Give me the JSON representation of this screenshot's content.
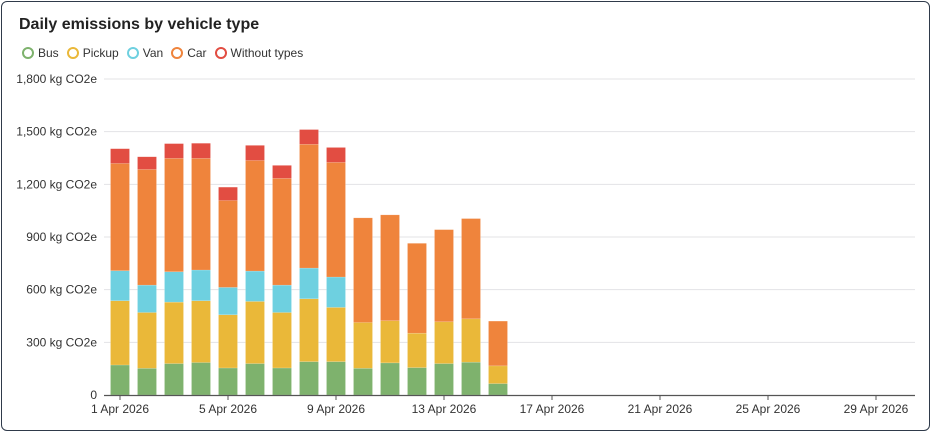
{
  "chart_data": {
    "type": "bar",
    "stacked": true,
    "title": "Daily emissions by vehicle type",
    "xlabel": "",
    "ylabel": "",
    "ylim": [
      0,
      1800
    ],
    "y_ticks": [
      0,
      300,
      600,
      900,
      1200,
      1500,
      1800
    ],
    "y_tick_labels": [
      "0",
      "300 kg CO2e",
      "600 kg CO2e",
      "900 kg CO2e",
      "1,200 kg CO2e",
      "1,500 kg CO2e",
      "1,800 kg CO2e"
    ],
    "x_days": [
      1,
      2,
      3,
      4,
      5,
      6,
      7,
      8,
      9,
      10,
      11,
      12,
      13,
      14,
      15
    ],
    "x_range_days": [
      1,
      30
    ],
    "x_tick_days": [
      1,
      5,
      9,
      13,
      17,
      21,
      25,
      29
    ],
    "x_tick_labels": [
      "1 Apr 2026",
      "5 Apr 2026",
      "9 Apr 2026",
      "13 Apr 2026",
      "17 Apr 2026",
      "21 Apr 2026",
      "25 Apr 2026",
      "29 Apr 2026"
    ],
    "grid": true,
    "legend_position": "top-left",
    "series": [
      {
        "name": "Bus",
        "color": "#7eb26d",
        "values": [
          171,
          152,
          179,
          185,
          154,
          179,
          154,
          190,
          190,
          152,
          183,
          156,
          179,
          187,
          65
        ]
      },
      {
        "name": "Pickup",
        "color": "#eab839",
        "values": [
          366,
          318,
          350,
          352,
          303,
          354,
          316,
          358,
          309,
          261,
          240,
          196,
          238,
          247,
          101
        ]
      },
      {
        "name": "Van",
        "color": "#6ed0e0",
        "values": [
          171,
          156,
          173,
          175,
          156,
          173,
          156,
          175,
          173,
          0,
          0,
          0,
          0,
          0,
          0
        ]
      },
      {
        "name": "Car",
        "color": "#ef843c",
        "values": [
          611,
          659,
          646,
          636,
          495,
          630,
          608,
          705,
          653,
          596,
          603,
          512,
          525,
          571,
          255
        ]
      },
      {
        "name": "Without types",
        "color": "#e24d42",
        "values": [
          84,
          72,
          84,
          86,
          76,
          86,
          74,
          84,
          85,
          0,
          0,
          0,
          0,
          0,
          0
        ]
      }
    ]
  }
}
